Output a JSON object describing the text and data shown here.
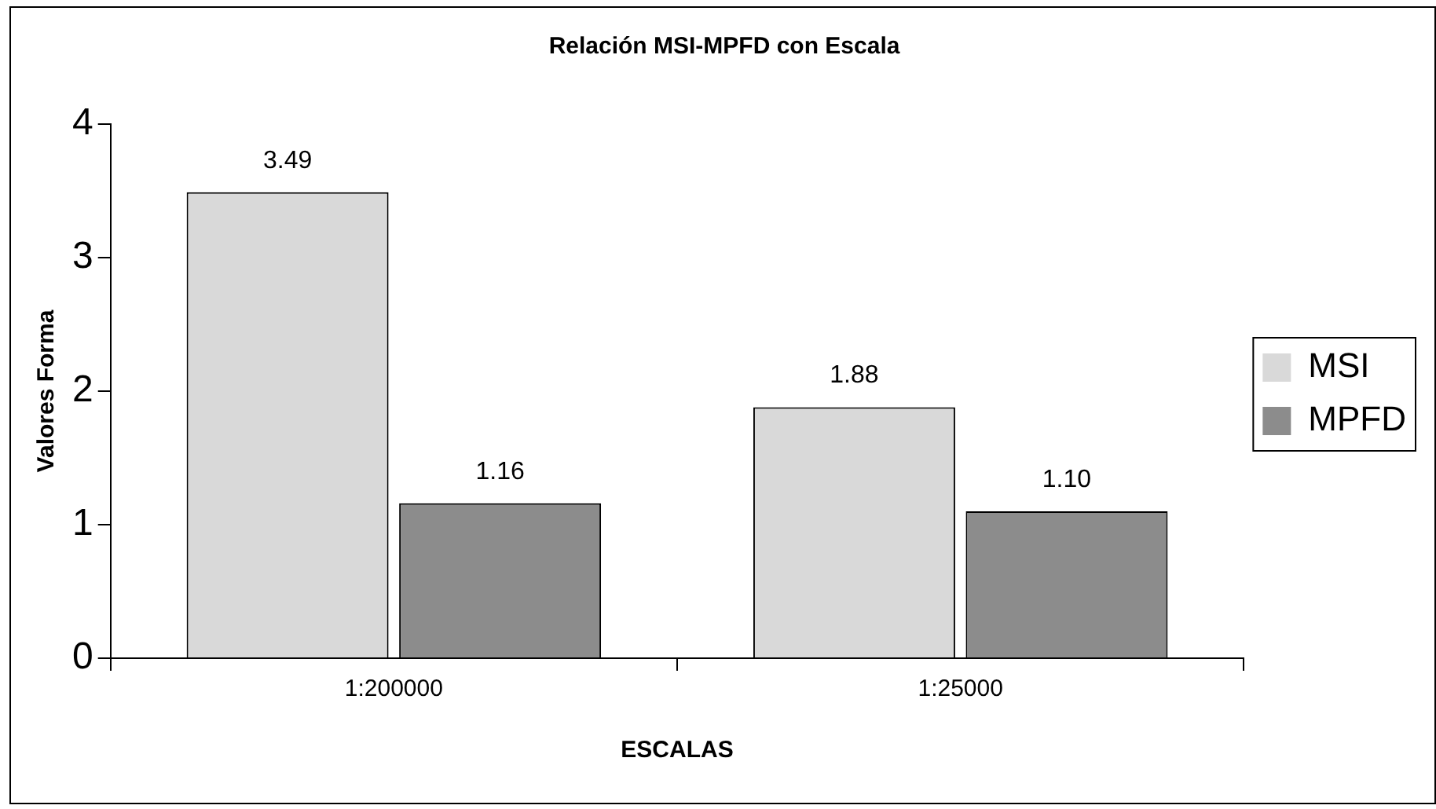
{
  "chart_data": {
    "type": "bar",
    "title": "Relación MSI-MPFD con Escala",
    "xlabel": "ESCALAS",
    "ylabel": "Valores Forma",
    "categories": [
      "1:200000",
      "1:25000"
    ],
    "series": [
      {
        "name": "MSI",
        "color": "#d9d9d9",
        "values": [
          3.49,
          1.88
        ],
        "value_labels": [
          "3.49",
          "1.88"
        ]
      },
      {
        "name": "MPFD",
        "color": "#8c8c8c",
        "values": [
          1.16,
          1.1
        ],
        "value_labels": [
          "1.16",
          "1.10"
        ]
      }
    ],
    "ylim": [
      0,
      4
    ],
    "yticks": [
      0,
      1,
      2,
      3,
      4
    ],
    "grid": false,
    "legend": "right"
  }
}
